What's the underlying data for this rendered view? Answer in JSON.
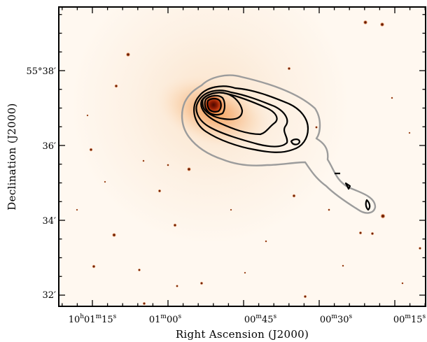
{
  "figure": {
    "x_axis_title": "Right Ascension (J2000)",
    "y_axis_title": "Declination (J2000)",
    "ra_ticks": [
      {
        "main": "10",
        "main_unit": "h",
        "min": "01",
        "min_unit": "m",
        "sec": "15",
        "sec_unit": "s"
      },
      {
        "main": "",
        "main_unit": "",
        "min": "01",
        "min_unit": "m",
        "sec": "00",
        "sec_unit": "s"
      },
      {
        "main": "",
        "main_unit": "",
        "min": "00",
        "min_unit": "m",
        "sec": "45",
        "sec_unit": "s"
      },
      {
        "main": "",
        "main_unit": "",
        "min": "00",
        "min_unit": "m",
        "sec": "30",
        "sec_unit": "s"
      },
      {
        "main": "",
        "main_unit": "",
        "min": "00",
        "min_unit": "m",
        "sec": "15",
        "sec_unit": "s"
      }
    ],
    "dec_ticks": [
      "55°38′",
      "36′",
      "34′",
      "32′"
    ],
    "colors": {
      "background": "#fff8f0",
      "galaxy_core": "#7a1200",
      "galaxy_halo": "#f7a35a",
      "outer_contour": "#9a9a9a",
      "inner_contours": "#000000",
      "stars": "#b04010"
    }
  }
}
